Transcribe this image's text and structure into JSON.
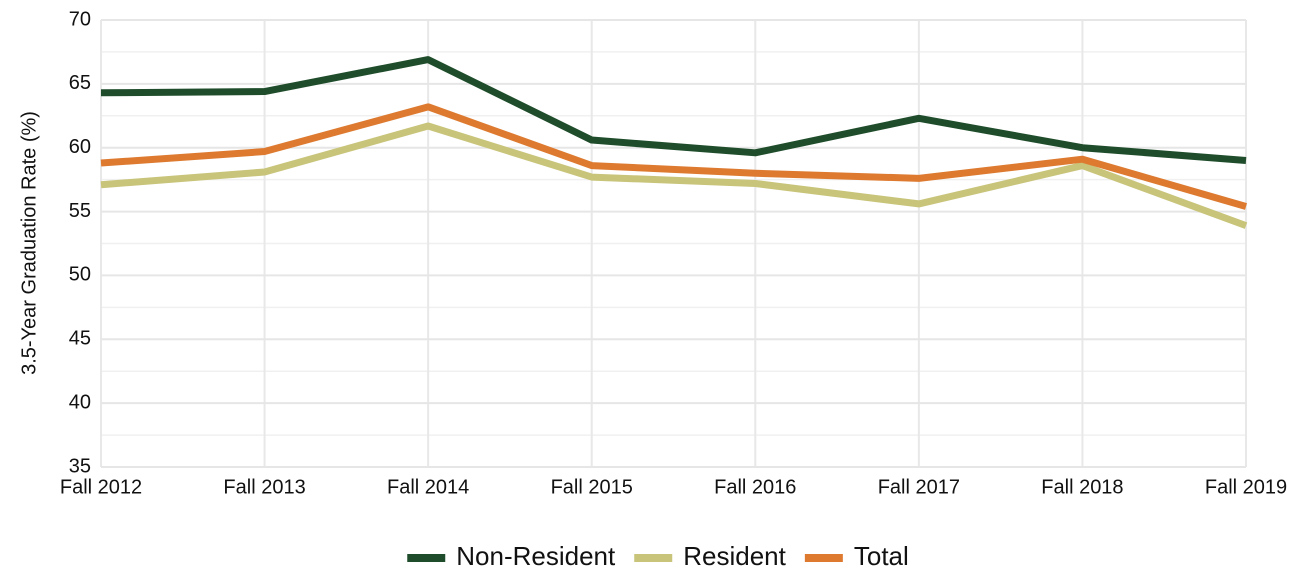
{
  "chart_data": {
    "type": "line",
    "y_label": "3.5-Year Graduation Rate (%)",
    "categories": [
      "Fall 2012",
      "Fall 2013",
      "Fall 2014",
      "Fall 2015",
      "Fall 2016",
      "Fall 2017",
      "Fall 2018",
      "Fall 2019"
    ],
    "series": [
      {
        "name": "Non-Resident",
        "color": "#1f4d2b",
        "values": [
          64.3,
          64.4,
          66.9,
          60.6,
          59.6,
          62.3,
          60.0,
          59.0
        ]
      },
      {
        "name": "Resident",
        "color": "#c8c47a",
        "values": [
          57.1,
          58.1,
          61.7,
          57.7,
          57.2,
          55.6,
          58.6,
          53.9
        ]
      },
      {
        "name": "Total",
        "color": "#dd7a30",
        "values": [
          58.8,
          59.7,
          63.2,
          58.6,
          58.0,
          57.6,
          59.1,
          55.4
        ]
      }
    ],
    "ylim": [
      35,
      70
    ],
    "yticks": [
      35,
      40,
      45,
      50,
      55,
      60,
      65,
      70
    ],
    "grid": true,
    "legend": "bottom"
  }
}
